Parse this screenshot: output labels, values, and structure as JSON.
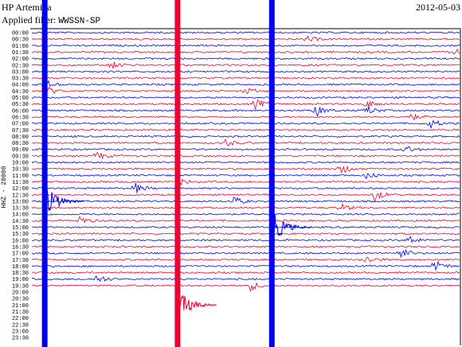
{
  "header": {
    "station": "HP Artemida",
    "date": "2012-05-03",
    "filter_label": "Applied filter:",
    "filter_value": "WWSSN-SP"
  },
  "chart_data": {
    "type": "line",
    "title": "",
    "ylabel": "HHZ - 20000",
    "row_times": [
      "00:00",
      "00:30",
      "01:00",
      "01:30",
      "02:00",
      "02:30",
      "03:00",
      "03:30",
      "04:00",
      "04:30",
      "05:00",
      "05:30",
      "06:00",
      "06:30",
      "07:00",
      "07:30",
      "08:00",
      "08:30",
      "09:00",
      "09:30",
      "10:00",
      "10:30",
      "11:00",
      "11:30",
      "12:00",
      "12:30",
      "13:00",
      "13:30",
      "14:00",
      "14:30",
      "15:00",
      "15:30",
      "16:00",
      "16:30",
      "17:00",
      "17:30",
      "18:00",
      "18:30",
      "19:00",
      "19:30",
      "20:00",
      "20:30",
      "21:00",
      "21:30",
      "22:00",
      "22:30",
      "23:00",
      "23:30"
    ],
    "rows_with_signal": 40,
    "colors": [
      "#0000ee",
      "#ee0033"
    ],
    "events": [
      {
        "row": 1,
        "pos": 0.64,
        "amp": 0.5,
        "color": 0
      },
      {
        "row": 3,
        "pos": 0.98,
        "amp": 0.6,
        "color": 1
      },
      {
        "row": 5,
        "pos": 0.18,
        "amp": 0.7,
        "color": 1
      },
      {
        "row": 8,
        "pos": 0.03,
        "amp": 0.8,
        "color": 0
      },
      {
        "row": 9,
        "pos": 0.03,
        "amp": 0.9,
        "color": 1
      },
      {
        "row": 9,
        "pos": 0.5,
        "amp": 0.5,
        "color": 0
      },
      {
        "row": 11,
        "pos": 0.52,
        "amp": 0.8,
        "color": 1
      },
      {
        "row": 11,
        "pos": 0.78,
        "amp": 0.6,
        "color": 0
      },
      {
        "row": 12,
        "pos": 0.66,
        "amp": 1.0,
        "color": 1
      },
      {
        "row": 12,
        "pos": 0.78,
        "amp": 0.7,
        "color": 0
      },
      {
        "row": 13,
        "pos": 0.88,
        "amp": 0.6,
        "color": 1
      },
      {
        "row": 14,
        "pos": 0.93,
        "amp": 0.7,
        "color": 0
      },
      {
        "row": 17,
        "pos": 0.45,
        "amp": 0.6,
        "color": 0
      },
      {
        "row": 18,
        "pos": 0.87,
        "amp": 0.6,
        "color": 1
      },
      {
        "row": 19,
        "pos": 0.15,
        "amp": 0.7,
        "color": 0
      },
      {
        "row": 21,
        "pos": 0.72,
        "amp": 0.8,
        "color": 0
      },
      {
        "row": 22,
        "pos": 0.78,
        "amp": 0.6,
        "color": 1
      },
      {
        "row": 23,
        "pos": 0.34,
        "amp": 0.6,
        "color": 0
      },
      {
        "row": 24,
        "pos": 0.24,
        "amp": 0.8,
        "color": 0
      },
      {
        "row": 25,
        "pos": 0.8,
        "amp": 0.9,
        "color": 1
      },
      {
        "row": 26,
        "pos": 0.47,
        "amp": 0.7,
        "color": 0
      },
      {
        "row": 27,
        "pos": 0.72,
        "amp": 0.6,
        "color": 1
      },
      {
        "row": 29,
        "pos": 0.11,
        "amp": 0.7,
        "color": 1
      },
      {
        "row": 32,
        "pos": 0.88,
        "amp": 0.7,
        "color": 0
      },
      {
        "row": 34,
        "pos": 0.86,
        "amp": 0.8,
        "color": 1
      },
      {
        "row": 35,
        "pos": 0.78,
        "amp": 0.7,
        "color": 0
      },
      {
        "row": 36,
        "pos": 0.94,
        "amp": 0.9,
        "color": 0
      },
      {
        "row": 38,
        "pos": 0.15,
        "amp": 0.8,
        "color": 0
      },
      {
        "row": 39,
        "pos": 0.51,
        "amp": 0.7,
        "color": 1
      }
    ],
    "spikes": [
      {
        "pos": 0.03,
        "color": 0,
        "start_row": 0,
        "end_row": 47,
        "coda_row": 26
      },
      {
        "pos": 0.34,
        "color": 1,
        "start_row": 0,
        "end_row": 47,
        "coda_row": 42
      },
      {
        "pos": 0.56,
        "color": 0,
        "start_row": 0,
        "end_row": 47,
        "coda_row": 30
      }
    ]
  }
}
